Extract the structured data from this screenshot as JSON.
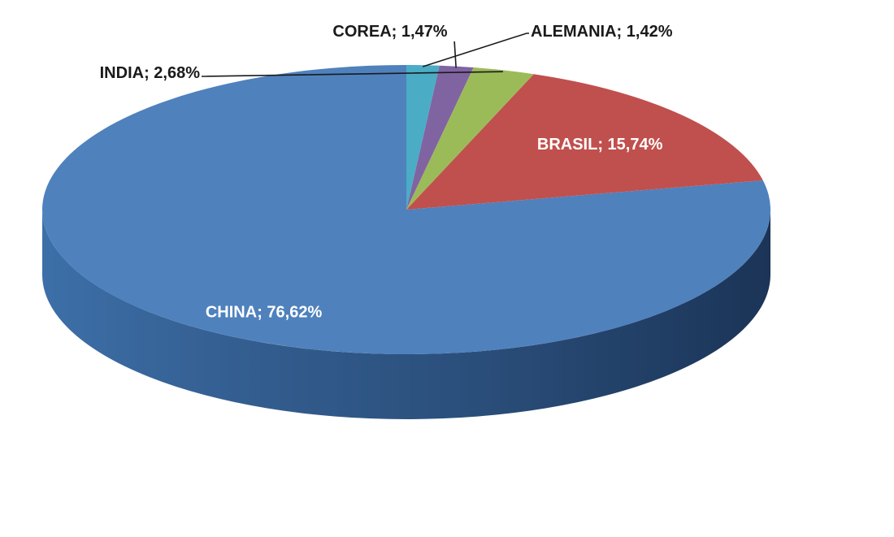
{
  "chart_data": {
    "type": "pie",
    "style": "3d",
    "title": "",
    "categories": [
      "CHINA",
      "BRASIL",
      "INDIA",
      "COREA",
      "ALEMANIA"
    ],
    "values": [
      76.62,
      15.74,
      2.68,
      1.47,
      1.42
    ],
    "units": "%",
    "labels": [
      "CHINA; 76,62%",
      "BRASIL; 15,74%",
      "INDIA; 2,68%",
      "COREA; 1,47%",
      "ALEMANIA; 1,42%"
    ],
    "colors": [
      "#4F81BD",
      "#C0504D",
      "#9BBB59",
      "#8064A2",
      "#4BACC6"
    ],
    "legend": "none",
    "start": "12 o'clock, counter-clockwise"
  }
}
